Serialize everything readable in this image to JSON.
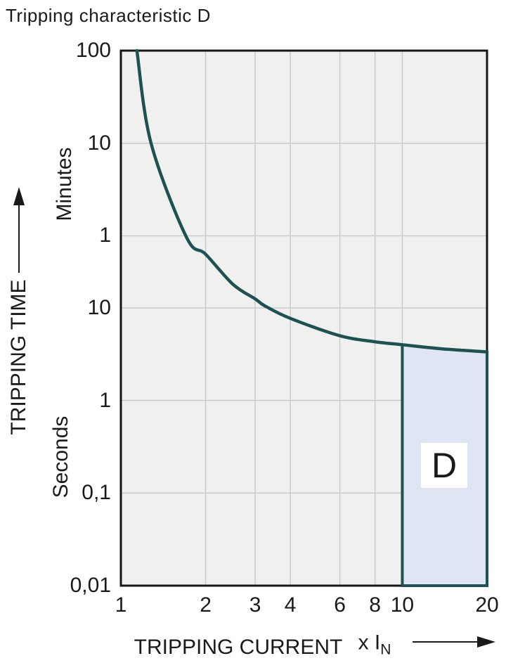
{
  "chart_data": {
    "type": "line",
    "title": "Tripping characteristic D",
    "xlabel": "TRIPPING CURRENT",
    "x_unit_main": "x I",
    "x_unit_sub": "N",
    "ylabel": "TRIPPING TIME",
    "y_unit_top": "Minutes",
    "y_unit_bottom": "Seconds",
    "x_scale": "log",
    "y_scale": "log",
    "xlim": [
      1,
      20
    ],
    "ylim_seconds": [
      0.01,
      6000
    ],
    "grid": true,
    "legend": false,
    "x_ticks": [
      {
        "value": 1,
        "label": "1"
      },
      {
        "value": 2,
        "label": "2"
      },
      {
        "value": 3,
        "label": "3"
      },
      {
        "value": 4,
        "label": "4"
      },
      {
        "value": 6,
        "label": "6"
      },
      {
        "value": 8,
        "label": "8"
      },
      {
        "value": 10,
        "label": "10"
      },
      {
        "value": 20,
        "label": "20"
      }
    ],
    "y_ticks": [
      {
        "seconds": 6000,
        "label": "100",
        "unit": "minutes"
      },
      {
        "seconds": 600,
        "label": "10",
        "unit": "minutes"
      },
      {
        "seconds": 60,
        "label": "1",
        "unit": "minutes"
      },
      {
        "seconds": 10,
        "label": "10",
        "unit": "seconds"
      },
      {
        "seconds": 1,
        "label": "1",
        "unit": "seconds"
      },
      {
        "seconds": 0.1,
        "label": "0,1",
        "unit": "seconds"
      },
      {
        "seconds": 0.01,
        "label": "0,01",
        "unit": "seconds"
      }
    ],
    "curve": {
      "name": "thermal-tripping-curve",
      "points_multiple_vs_seconds": [
        [
          1.14,
          6000
        ],
        [
          1.28,
          600
        ],
        [
          1.71,
          58
        ],
        [
          2.0,
          38
        ],
        [
          2.5,
          18
        ],
        [
          3.0,
          12.5
        ],
        [
          3.25,
          10.5
        ],
        [
          4.0,
          7.7
        ],
        [
          6.0,
          5.0
        ],
        [
          8.0,
          4.3
        ],
        [
          10.0,
          4.0
        ],
        [
          14.0,
          3.6
        ],
        [
          20.0,
          3.35
        ]
      ]
    },
    "region": {
      "label": "D",
      "x_range": [
        10,
        20
      ],
      "y_bottom_seconds": 0.01,
      "top_boundary": "curve"
    },
    "colors": {
      "curve": "#1e5252",
      "region_fill": "#dfe5f2",
      "region_border": "#1e5252",
      "plot_bg": "#f0f0ee",
      "gridline": "#c7c9ca",
      "frame": "#161616",
      "text": "#1a1a1a"
    }
  }
}
